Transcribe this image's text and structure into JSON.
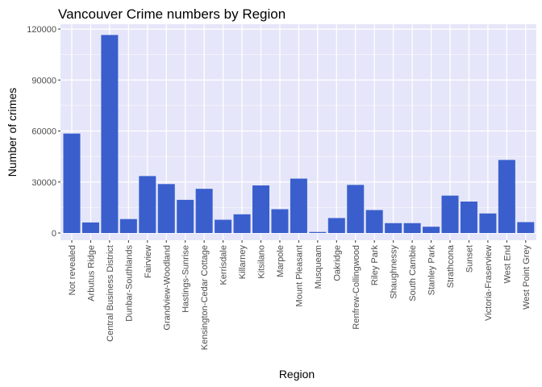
{
  "chart_data": {
    "type": "bar",
    "title": "Vancouver Crime numbers by Region",
    "xlabel": "Region",
    "ylabel": "Number of crimes",
    "ylim": [
      0,
      120000
    ],
    "yticks": [
      0,
      30000,
      60000,
      90000,
      120000
    ],
    "ytick_labels": [
      "0",
      "30000",
      "60000",
      "90000",
      "120000"
    ],
    "categories": [
      "Not revealed",
      "Arbutus Ridge",
      "Central Business District",
      "Dunbar-Southlands",
      "Fairview",
      "Grandview-Woodland",
      "Hastings-Sunrise",
      "Kensington-Cedar Cottage",
      "Kerrisdale",
      "Killarney",
      "Kitsilano",
      "Marpole",
      "Mount Pleasant",
      "Musqueam",
      "Oakridge",
      "Renfrew-Collingwood",
      "Riley Park",
      "Shaughnessy",
      "South Cambie",
      "Stanley Park",
      "Strathcona",
      "Sunset",
      "Victoria-Fraserview",
      "West End",
      "West Point Grey"
    ],
    "values": [
      58500,
      6200,
      116500,
      8200,
      33500,
      28800,
      19500,
      26000,
      7800,
      11000,
      28000,
      14000,
      32000,
      600,
      8800,
      28300,
      13500,
      5800,
      5800,
      3700,
      22000,
      18500,
      11500,
      43000,
      6400
    ],
    "bar_color": "#3A5FCD",
    "panel_background": "#E6E6FA",
    "grid": true
  }
}
